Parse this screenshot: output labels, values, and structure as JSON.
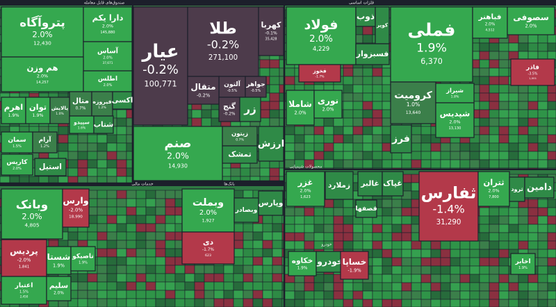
{
  "headers": [
    "صندوق‌های قابل معامله",
    "فلزات اساسی",
    "محصولات شیمیایی",
    "خدمات مالی",
    "بانک‌ها",
    "خودرو"
  ],
  "tiles": [
    {
      "name": "پتروآگاه",
      "change": "2.0%",
      "value": "12,430"
    },
    {
      "name": "دارا یکم",
      "change": "2.0%",
      "value": "145,880"
    },
    {
      "name": "آساس",
      "change": "2.0%",
      "value": "37,671"
    },
    {
      "name": "هم وزن",
      "change": "2.0%",
      "value": "14,257"
    },
    {
      "name": "اطلس",
      "change": "2.0%"
    },
    {
      "name": "متال",
      "change": "0.7%"
    },
    {
      "name": "فیروزه",
      "change": "1.2%"
    },
    {
      "name": "اکسی"
    },
    {
      "name": "اهرم",
      "change": "1.9%"
    },
    {
      "name": "توان",
      "change": "1.9%"
    },
    {
      "name": "پالایش",
      "change": "1.0%"
    },
    {
      "name": "سپیدو",
      "change": "1.6%"
    },
    {
      "name": "شتاب"
    },
    {
      "name": "سمان",
      "change": "1.5%"
    },
    {
      "name": "آرام",
      "change": "1.2%"
    },
    {
      "name": "کاریس",
      "change": "2.0%"
    },
    {
      "name": "استیل"
    },
    {
      "name": "عیار",
      "change": "-0.2%",
      "value": "100,771"
    },
    {
      "name": "طلا",
      "change": "-0.2%",
      "value": "271,100"
    },
    {
      "name": "کهربا",
      "change": "-0.1%",
      "value": "35,428"
    },
    {
      "name": "آلتون",
      "change": "-0.5%"
    },
    {
      "name": "جواهر",
      "change": "-0.5%"
    },
    {
      "name": "متقال",
      "change": "-0.2%"
    },
    {
      "name": "گنج",
      "change": "-0.2%"
    },
    {
      "name": "زر"
    },
    {
      "name": "صنم",
      "change": "2.0%",
      "value": "14,930"
    },
    {
      "name": "زیتون",
      "change": "0.7%"
    },
    {
      "name": "تمشک"
    },
    {
      "name": "ارزش"
    },
    {
      "name": "فولاد",
      "change": "2.0%",
      "value": "4,229"
    },
    {
      "name": "ذوب"
    },
    {
      "name": "کویر"
    },
    {
      "name": "فسبزوار"
    },
    {
      "name": "فملی",
      "change": "1.9%",
      "value": "6,370"
    },
    {
      "name": "فباهنر",
      "change": "2.0%",
      "value": "4,512"
    },
    {
      "name": "سصوفی",
      "change": "2.0%"
    },
    {
      "name": "فاذر",
      "change": "-3.5%",
      "value": "1,001"
    },
    {
      "name": "فخوز",
      "change": "-1.7%"
    },
    {
      "name": "شاملا",
      "change": "2.0%"
    },
    {
      "name": "نوری",
      "change": "2.0%"
    },
    {
      "name": "کرومیت",
      "change": "1.0%",
      "value": "13,640"
    },
    {
      "name": "شیراز",
      "change": "1.8%"
    },
    {
      "name": "شپدیس",
      "change": "2.0%",
      "value": "13,130"
    },
    {
      "name": "فرز"
    },
    {
      "name": "غزر",
      "change": "2.0%",
      "value": "1,623"
    },
    {
      "name": "زملارد"
    },
    {
      "name": "غالبر"
    },
    {
      "name": "غپاک"
    },
    {
      "name": "ثفارس",
      "change": "-1.4%",
      "value": "31,290"
    },
    {
      "name": "ثتران",
      "change": "2.0%",
      "value": "7,800"
    },
    {
      "name": "ثرود"
    },
    {
      "name": "دامین"
    },
    {
      "name": "خکاوه",
      "change": "1.9%"
    },
    {
      "name": "خودرو"
    },
    {
      "name": "خساپا",
      "change": "-1.9%"
    },
    {
      "name": "قصفها"
    },
    {
      "name": "اخابر",
      "change": "1.9%"
    },
    {
      "name": "وبانک",
      "change": "2.0%",
      "value": "4,805"
    },
    {
      "name": "وارس",
      "change": "-2.0%",
      "value": "18,990"
    },
    {
      "name": "پردیس",
      "change": "-2.0%",
      "value": "1,841"
    },
    {
      "name": "اعتبار",
      "change": "1.5%",
      "value": "2,450"
    },
    {
      "name": "شستا",
      "change": "1.9%"
    },
    {
      "name": "تاصیکو",
      "change": "1.9%"
    },
    {
      "name": "سلیم",
      "change": "2.0%"
    },
    {
      "name": "وبملت",
      "change": "2.0%",
      "value": "1,927"
    },
    {
      "name": "دی",
      "change": "-1.7%",
      "value": "623"
    },
    {
      "name": "وبصادر"
    },
    {
      "name": "وپارس"
    }
  ]
}
